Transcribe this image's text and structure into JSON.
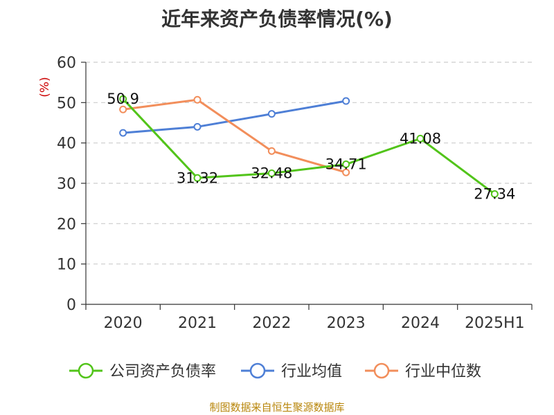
{
  "title": "近年来资产负债率情况(%)",
  "source": "制图数据来自恒生聚源数据库",
  "colors": {
    "company": "#52c41a",
    "industry_avg": "#4e7fd6",
    "industry_median": "#f28e5b",
    "title": "#333333",
    "source": "#b8860b",
    "unit": "#cc0000"
  },
  "chart_data": {
    "type": "line",
    "title": "近年来资产负债率情况(%)",
    "ylabel": "(%)",
    "xlabel": "",
    "categories": [
      "2020",
      "2021",
      "2022",
      "2023",
      "2024",
      "2025H1"
    ],
    "ylim": [
      0,
      60
    ],
    "yticks": [
      0,
      10,
      20,
      30,
      40,
      50,
      60
    ],
    "grid": true,
    "legend_position": "bottom",
    "series": [
      {
        "name": "公司资产负债率",
        "color_key": "company",
        "values": [
          50.9,
          31.32,
          32.48,
          34.71,
          41.08,
          27.34
        ],
        "labels": [
          "50.9",
          "31.32",
          "32.48",
          "34.71",
          "41.08",
          "27.34"
        ]
      },
      {
        "name": "行业均值",
        "color_key": "industry_avg",
        "values": [
          42.5,
          44.0,
          47.2,
          50.4,
          null,
          null
        ]
      },
      {
        "name": "行业中位数",
        "color_key": "industry_median",
        "values": [
          48.3,
          50.7,
          38.0,
          32.7,
          null,
          null
        ]
      }
    ]
  }
}
